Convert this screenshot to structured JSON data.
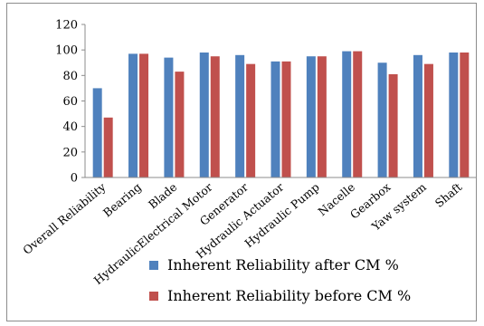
{
  "chart_data": {
    "type": "bar",
    "title": "",
    "xlabel": "",
    "ylabel": "",
    "ylim": [
      0,
      120
    ],
    "yticks": [
      0,
      20,
      40,
      60,
      80,
      100,
      120
    ],
    "grid": false,
    "legend_position": "bottom",
    "categories": [
      "Overall Reliability",
      "Bearing",
      "Blade",
      "HydraulicElectrical Motor",
      "Generator",
      "Hydraulic Actuator",
      "Hydraulic Pump",
      "Nacelle",
      "Gearbox",
      "Yaw system",
      "Shaft"
    ],
    "series": [
      {
        "name": "Inherent Reliability after CM %",
        "color": "#4f81bd",
        "values": [
          70,
          97,
          94,
          98,
          96,
          91,
          95,
          99,
          90,
          96,
          98
        ]
      },
      {
        "name": "Inherent Reliability before CM %",
        "color": "#c0504d",
        "values": [
          47,
          97,
          83,
          95,
          89,
          91,
          95,
          99,
          81,
          89,
          98
        ]
      }
    ]
  }
}
